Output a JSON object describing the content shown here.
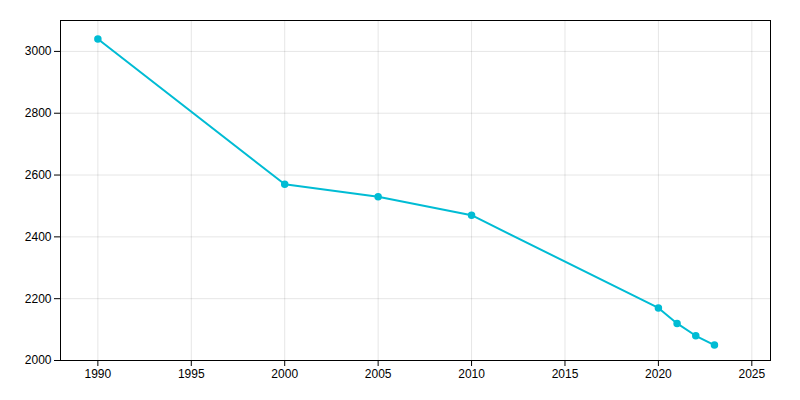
{
  "chart_data": {
    "type": "line",
    "x": [
      1990,
      2000,
      2005,
      2010,
      2020,
      2021,
      2022,
      2023
    ],
    "values": [
      3040,
      2570,
      2530,
      2470,
      2170,
      2120,
      2080,
      2050
    ],
    "color": "#00bcd4",
    "marker": "circle",
    "xlim": [
      1988,
      2026
    ],
    "ylim": [
      2000,
      3100
    ],
    "xticks": [
      1990,
      1995,
      2000,
      2005,
      2010,
      2015,
      2020,
      2025
    ],
    "yticks": [
      2000,
      2200,
      2400,
      2600,
      2800,
      3000
    ],
    "grid": true
  }
}
